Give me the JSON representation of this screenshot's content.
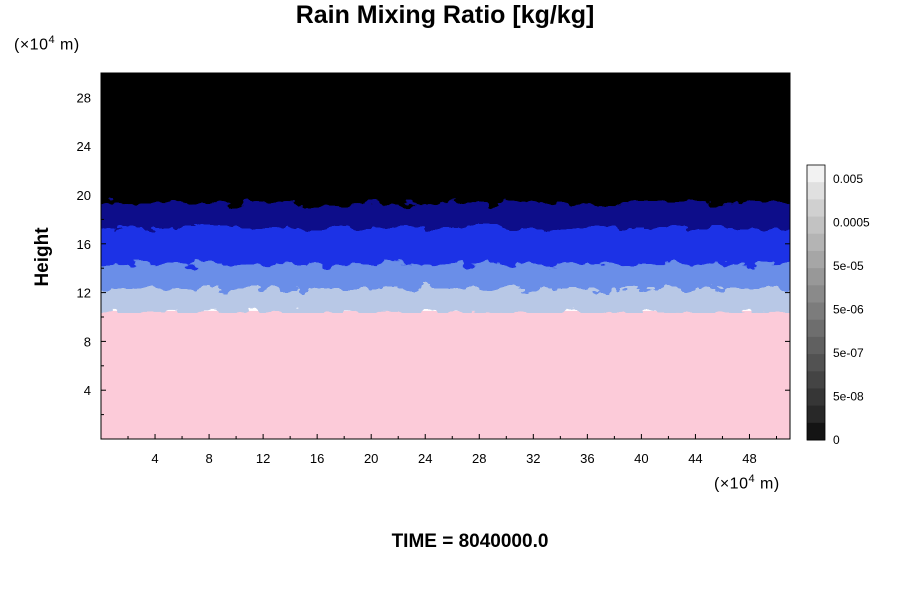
{
  "chart_data": {
    "type": "heatmap",
    "title": "Rain Mixing Ratio [kg/kg]",
    "ylabel": "Height",
    "y_unit": {
      "prefix": "(×10",
      "exp": "4",
      "suffix": " m)"
    },
    "x_unit": {
      "prefix": "(×10",
      "exp": "4",
      "suffix": " m)"
    },
    "footer": "TIME = 8040000.0",
    "xlim": [
      0,
      51
    ],
    "ylim": [
      0,
      30
    ],
    "x_ticks": [
      "4",
      "8",
      "12",
      "16",
      "20",
      "24",
      "28",
      "32",
      "36",
      "40",
      "44",
      "48"
    ],
    "y_ticks": [
      "4",
      "8",
      "12",
      "16",
      "20",
      "24",
      "28"
    ],
    "bands": [
      {
        "from": 0,
        "to": 10.5,
        "color": "#fccbd9",
        "level": "upper"
      },
      {
        "from": 10.5,
        "to": 12.5,
        "color": "#b8c8e6",
        "level": "mid"
      },
      {
        "from": 12.5,
        "to": 14.5,
        "color": "#6a8ee8",
        "level": "mid"
      },
      {
        "from": 14.5,
        "to": 17.5,
        "color": "#1f32e6",
        "level": "low"
      },
      {
        "from": 17.5,
        "to": 19.5,
        "color": "#0b0e8a",
        "level": "low"
      },
      {
        "from": 19.5,
        "to": 30,
        "color": "#000000",
        "level": "zero"
      }
    ],
    "colorbar": {
      "labels": [
        "0.005",
        "0.0005",
        "5e-05",
        "5e-06",
        "5e-07",
        "5e-08",
        "0"
      ],
      "colors": [
        "#f2f2f2",
        "#e0e0e0",
        "#d0d0d0",
        "#c2c2c2",
        "#b4b4b4",
        "#a6a6a6",
        "#989898",
        "#8a8a8a",
        "#7c7c7c",
        "#6e6e6e",
        "#606060",
        "#525252",
        "#444444",
        "#363636",
        "#282828",
        "#141414"
      ]
    }
  }
}
